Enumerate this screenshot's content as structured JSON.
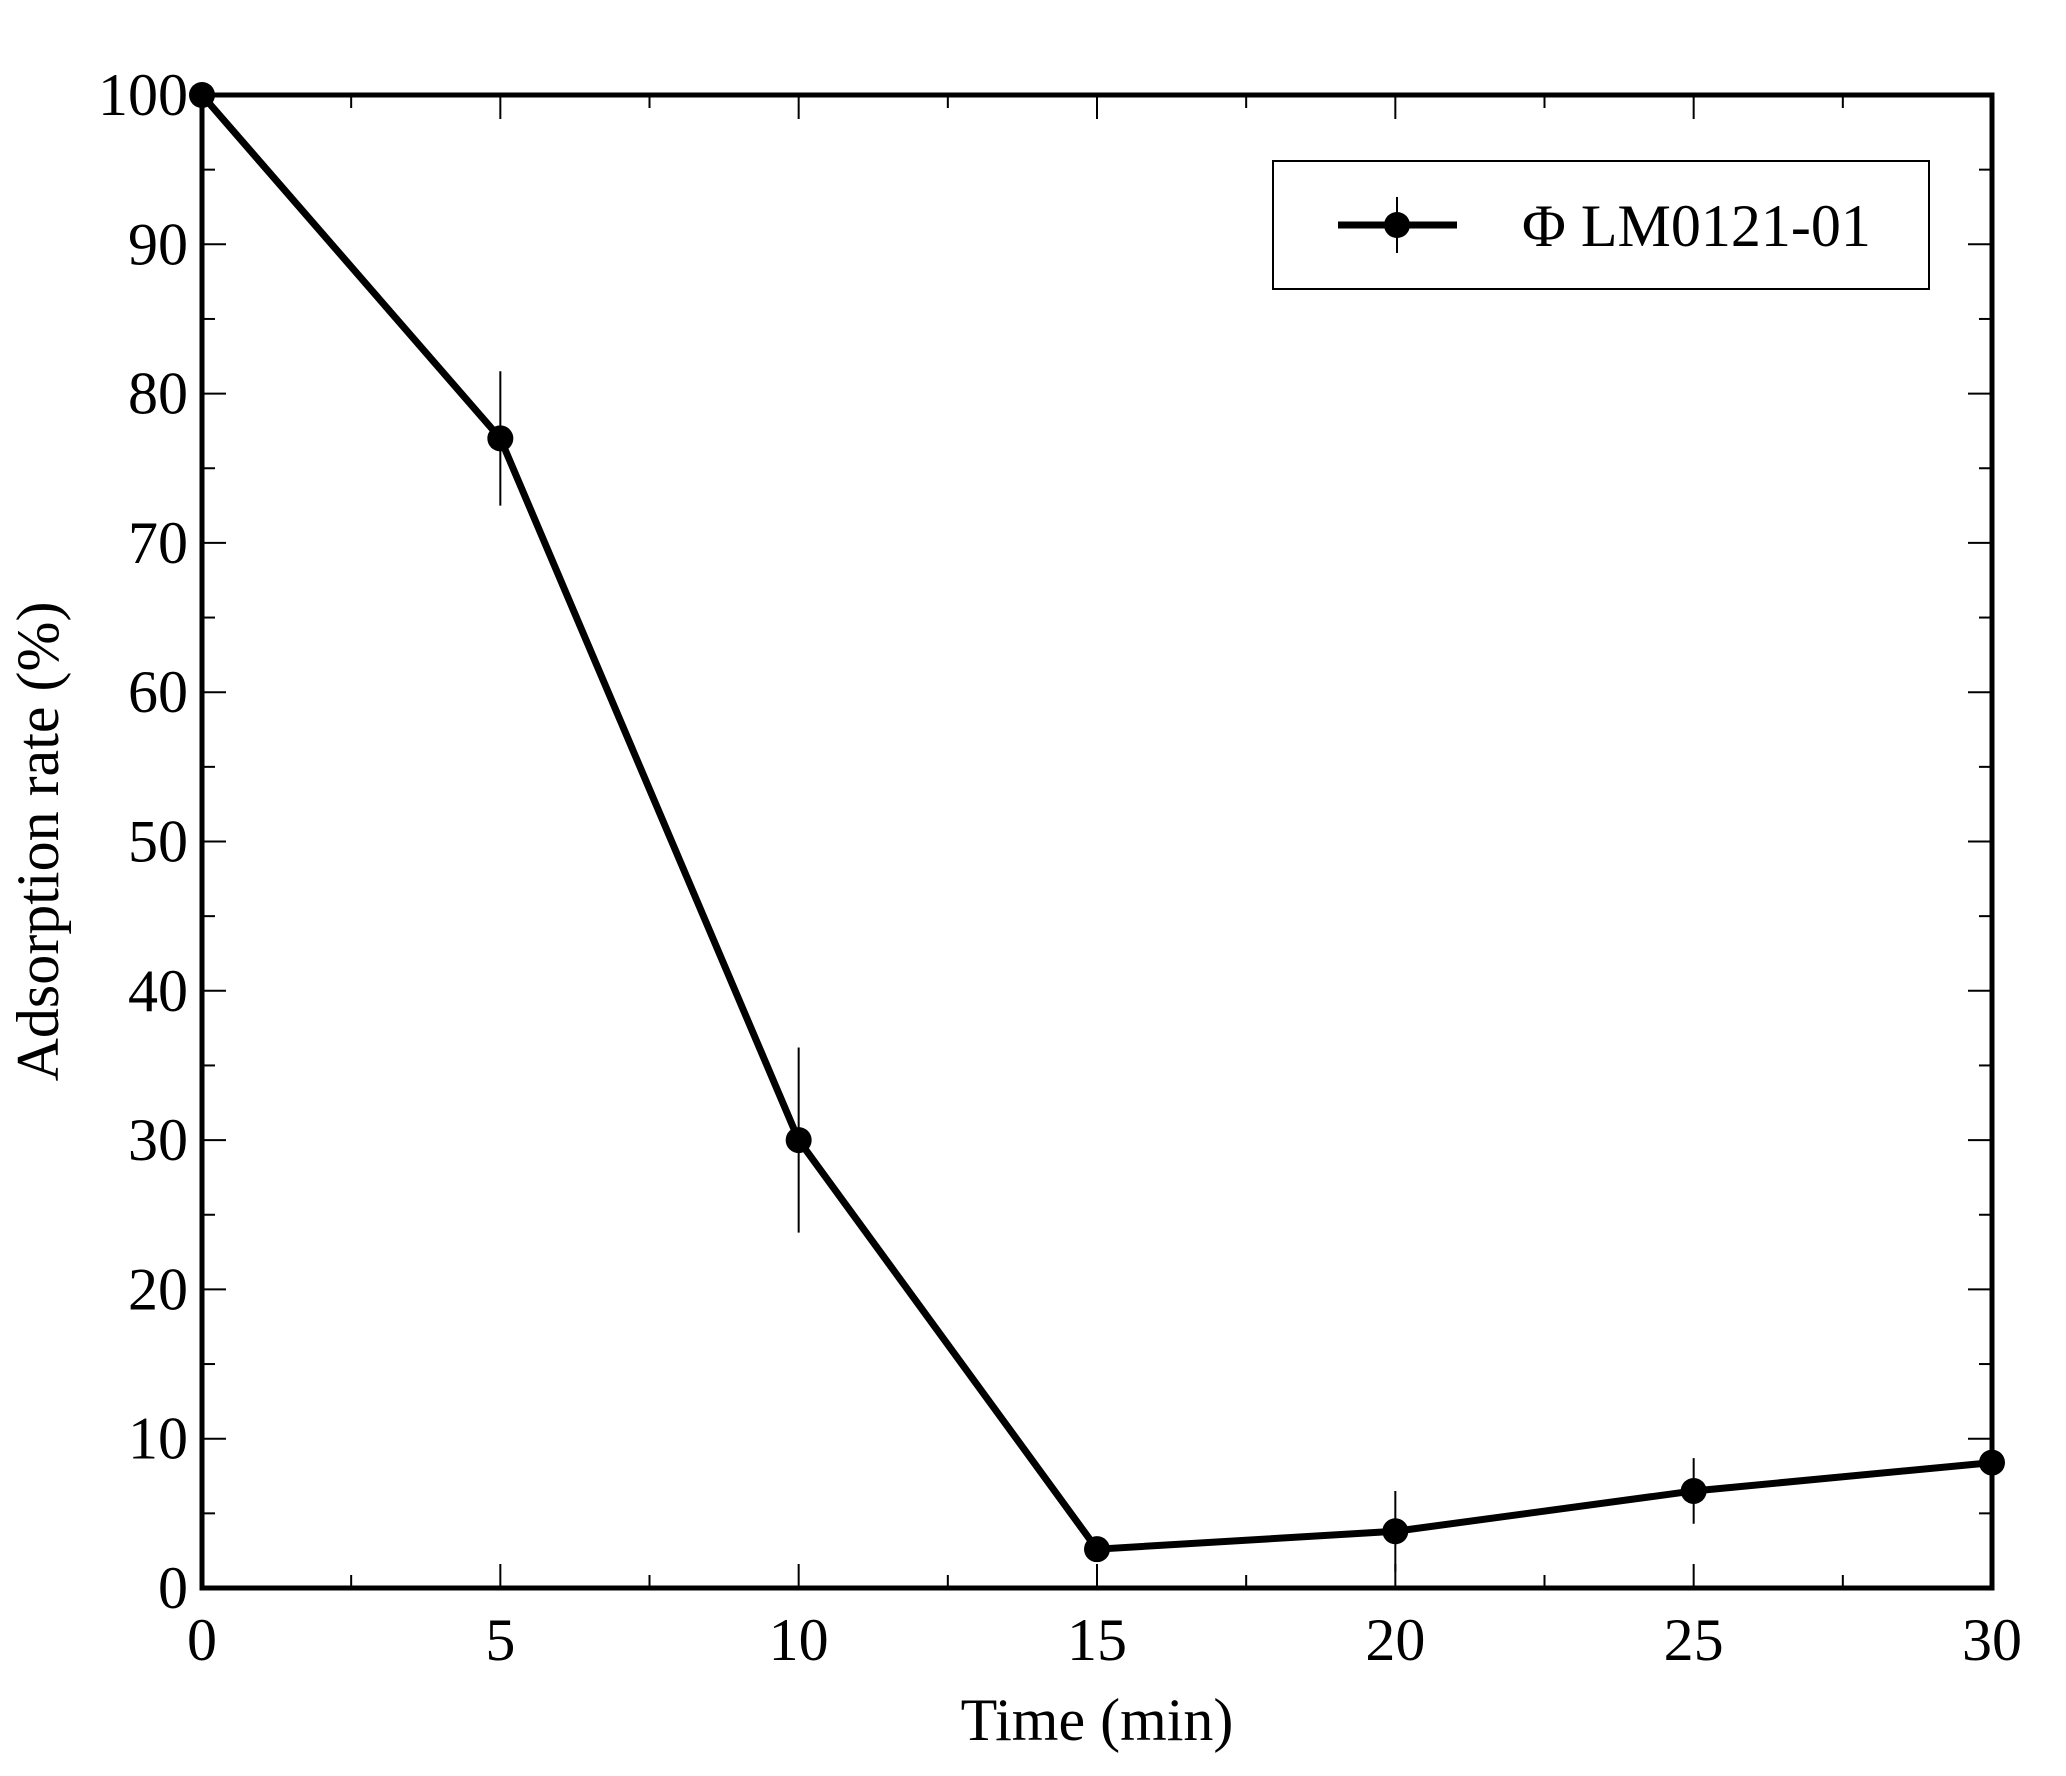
{
  "chart_data": {
    "type": "line",
    "title": "",
    "xlabel": "Time (min)",
    "ylabel": "Adsorption rate (%)",
    "xlim": [
      0,
      30
    ],
    "ylim": [
      0,
      100
    ],
    "x_ticks": [
      "0",
      "5",
      "10",
      "15",
      "20",
      "25",
      "30"
    ],
    "y_ticks": [
      "0",
      "10",
      "20",
      "30",
      "40",
      "50",
      "60",
      "70",
      "80",
      "90",
      "100"
    ],
    "x_minor_step": 2.5,
    "y_minor_step": 5,
    "grid": false,
    "legend_position": "top-right",
    "colors": {
      "line": "#000000",
      "marker": "#000000",
      "axes": "#000000"
    },
    "series": [
      {
        "name": "Φ LM0121-01",
        "x": [
          0,
          5,
          10,
          15,
          20,
          25,
          30
        ],
        "y": [
          100,
          77,
          30,
          2.6,
          3.8,
          6.5,
          8.4
        ],
        "error": [
          0,
          4.5,
          6.2,
          0.8,
          2.7,
          2.2,
          1.6
        ]
      }
    ]
  }
}
